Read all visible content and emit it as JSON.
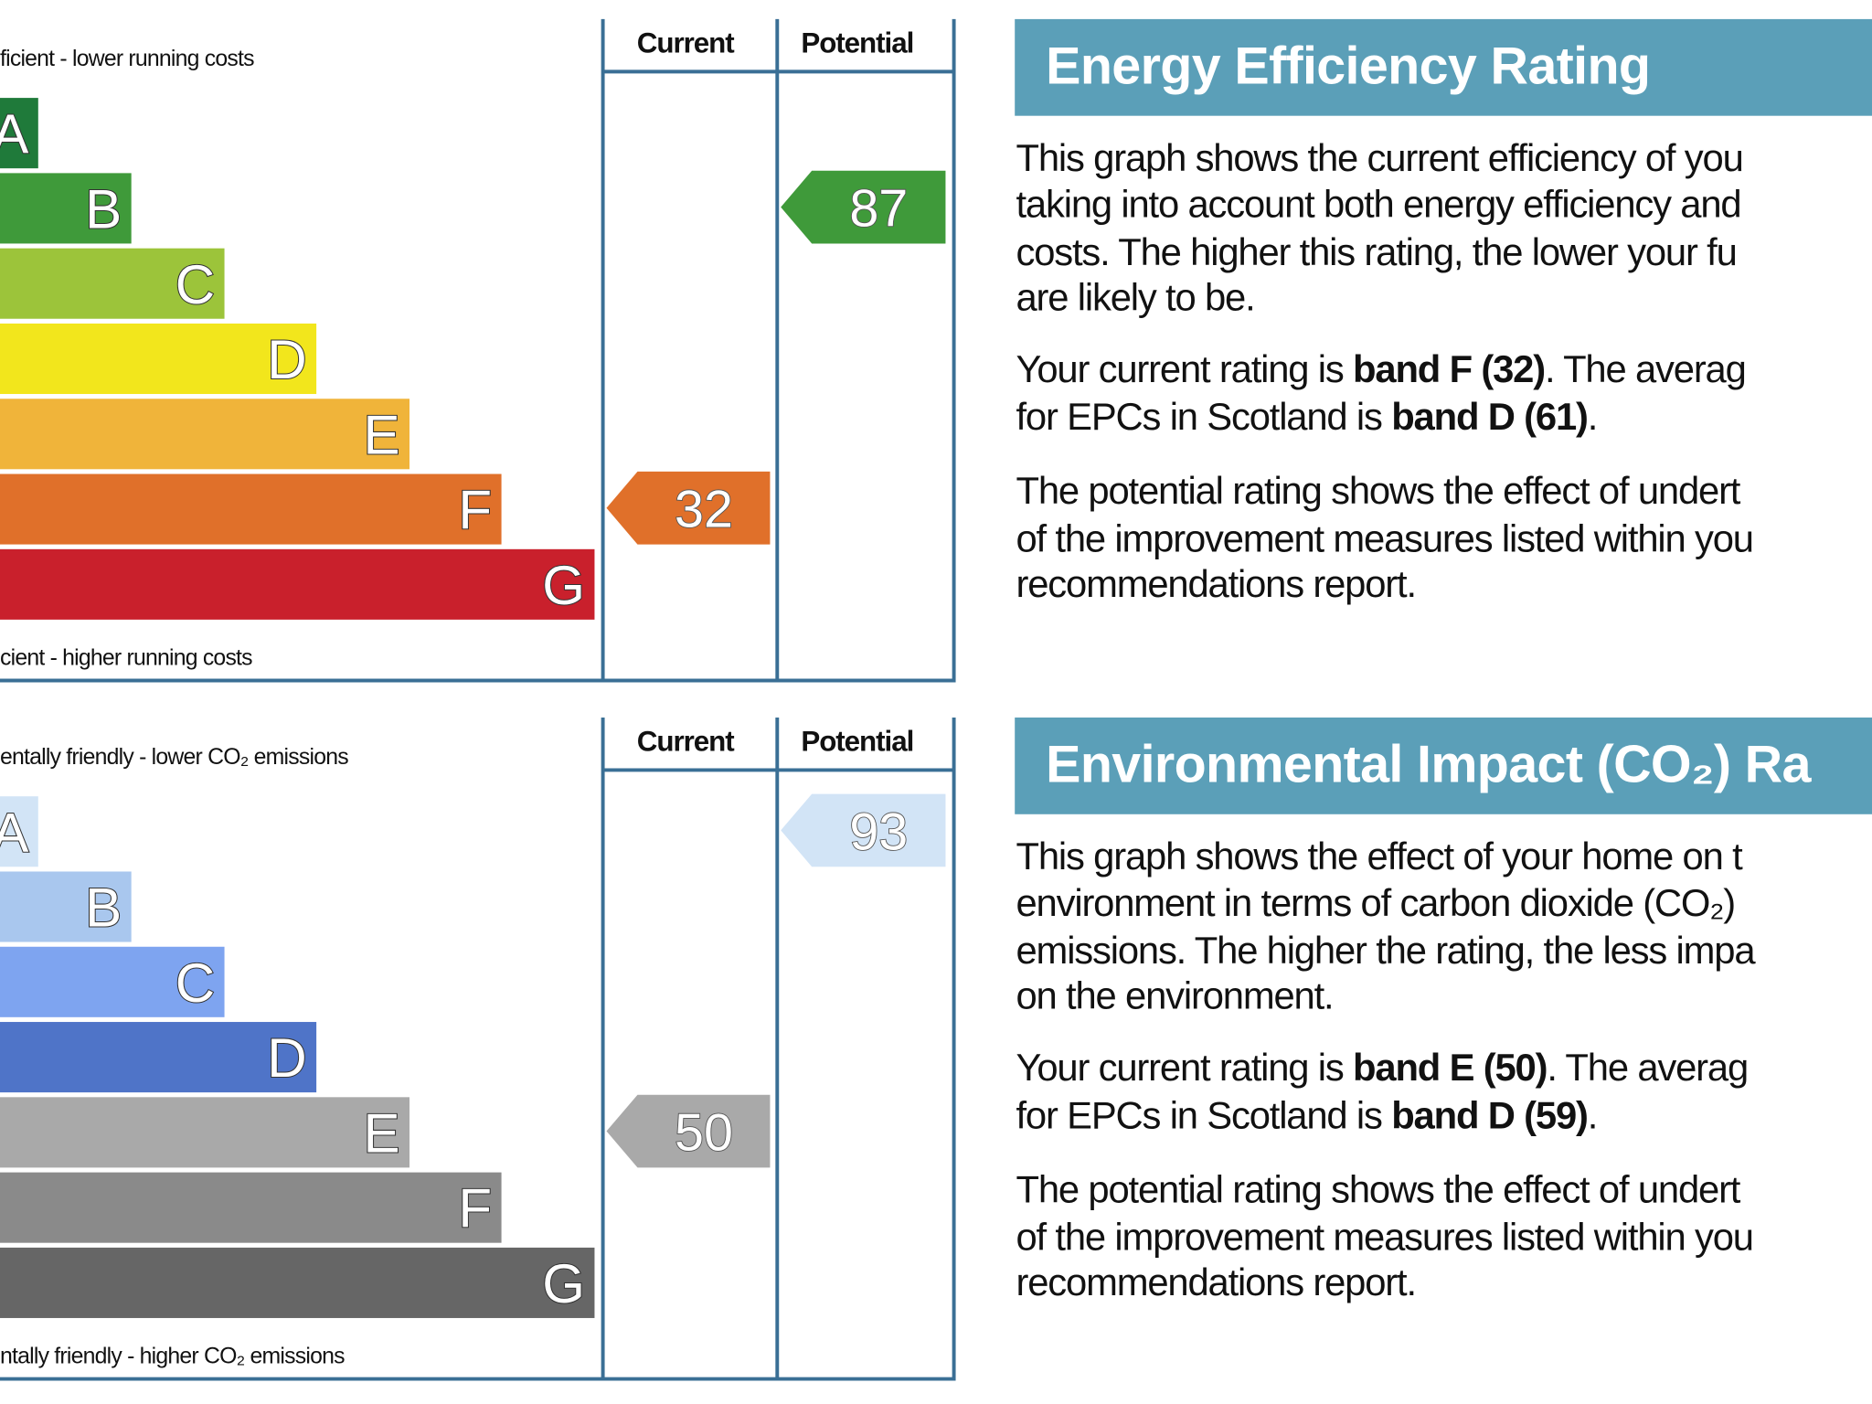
{
  "panels": [
    {
      "scale_top": "ficient - lower running costs",
      "scale_bottom": "cient - higher running costs",
      "column_headers": [
        "Current",
        "Potential"
      ],
      "bands": [
        "A",
        "B",
        "C",
        "D",
        "E",
        "F",
        "G"
      ],
      "band_colors": [
        "#1f7a3a",
        "#3f9a3a",
        "#9cc43a",
        "#f2e61c",
        "#f0b43a",
        "#e0702a",
        "#c9202c"
      ],
      "current": 32,
      "current_color": "#e0702a",
      "potential": 87,
      "potential_color": "#3f9a3a",
      "title": "Energy Efficiency Rating",
      "paragraphs": [
        [
          [
            "This graph shows the current efficiency of you"
          ],
          [
            "taking into account both energy efficiency and"
          ],
          [
            "costs. The higher this rating, the lower your fu"
          ],
          [
            "are likely to be."
          ]
        ],
        [
          [
            "Your current rating is ",
            "band F (32)",
            ". The averag"
          ],
          [
            "for EPCs in Scotland is ",
            "band D (61)",
            "."
          ]
        ],
        [
          [
            "The potential rating shows the effect of undert"
          ],
          [
            "of the improvement measures listed within you"
          ],
          [
            "recommendations report."
          ]
        ]
      ]
    },
    {
      "scale_top": "entally friendly - lower CO₂ emissions",
      "scale_bottom": "ntally friendly - higher CO₂ emissions",
      "column_headers": [
        "Current",
        "Potential"
      ],
      "bands": [
        "A",
        "B",
        "C",
        "D",
        "E",
        "F",
        "G"
      ],
      "band_colors": [
        "#d2e4f6",
        "#a9c7ee",
        "#7ea4f0",
        "#4f74c8",
        "#a9a9a9",
        "#8a8a8a",
        "#666666"
      ],
      "current": 50,
      "current_color": "#a9a9a9",
      "potential": 93,
      "potential_color": "#d2e4f6",
      "title": "Environmental Impact (CO₂) Ra",
      "paragraphs": [
        [
          [
            "This graph shows the effect of your home on t"
          ],
          [
            "environment in terms of carbon dioxide (CO₂)"
          ],
          [
            "emissions. The higher the rating, the less impa"
          ],
          [
            "on the environment."
          ]
        ],
        [
          [
            "Your current rating is ",
            "band E (50)",
            ". The averag"
          ],
          [
            "for EPCs in Scotland is ",
            "band D (59)",
            "."
          ]
        ],
        [
          [
            "The potential rating shows the effect of undert"
          ],
          [
            "of the improvement measures listed within you"
          ],
          [
            "recommendations report."
          ]
        ]
      ]
    }
  ]
}
